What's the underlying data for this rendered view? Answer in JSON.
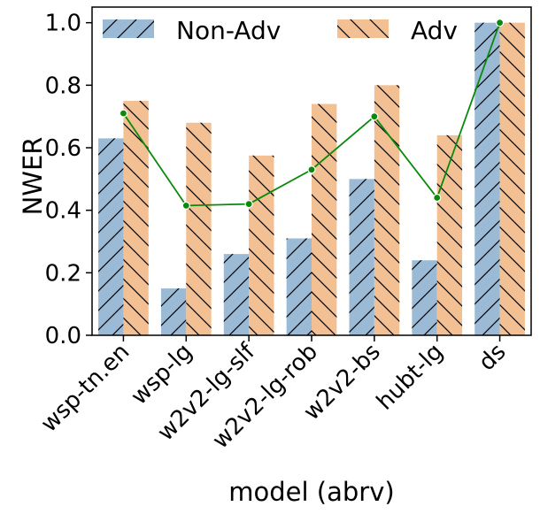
{
  "chart_data": {
    "type": "bar",
    "title": "",
    "xlabel": "model (abrv)",
    "ylabel": "NWER",
    "ylim": [
      0.0,
      1.05
    ],
    "yticks": [
      "0.0",
      "0.2",
      "0.4",
      "0.6",
      "0.8",
      "1.0"
    ],
    "ytick_values": [
      0.0,
      0.2,
      0.4,
      0.6,
      0.8,
      1.0
    ],
    "categories": [
      "wsp-tn.en",
      "wsp-lg",
      "w2v2-lg-slf",
      "w2v2-lg-rob",
      "w2v2-bs",
      "hubt-lg",
      "ds"
    ],
    "series": [
      {
        "name": "Non-Adv",
        "color": "#9bbad5",
        "hatch": "forward",
        "values": [
          0.63,
          0.15,
          0.26,
          0.31,
          0.5,
          0.24,
          1.0
        ]
      },
      {
        "name": "Adv",
        "color": "#f2c093",
        "hatch": "back",
        "values": [
          0.75,
          0.68,
          0.575,
          0.74,
          0.8,
          0.64,
          1.0
        ]
      }
    ],
    "line": {
      "name": "",
      "color": "#0a8a0a",
      "values": [
        0.71,
        0.415,
        0.42,
        0.53,
        0.7,
        0.44,
        1.0
      ]
    },
    "legend": {
      "placement": "top",
      "ncol": 2
    },
    "grid": false
  }
}
